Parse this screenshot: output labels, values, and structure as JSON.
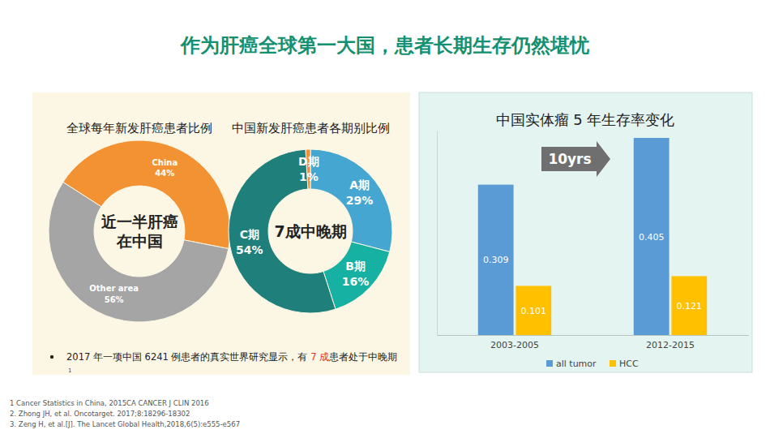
{
  "page": {
    "title": "作为肝癌全球第一大国，患者长期生存仍然堪忧",
    "bullet": [
      "2017 年一项中国 6241 例患者的真实世界研究显示，有 ",
      "7 成",
      "患者处于中晚期"
    ],
    "bullet_ref": "1",
    "footnotes": [
      "1 Cancer Statistics in China, 2015CA CANCER J CLIN 2016",
      "2. Zhong JH, et al. Oncotarget. 2017;8:18296-18302",
      "3. Zeng H, et al.[J]. The Lancet Global Health,2018,6(5):e555-e567"
    ]
  },
  "chart_data": [
    {
      "type": "pie",
      "title": "全球每年新发肝癌患者比例",
      "annotations": [
        "近一半肝癌",
        "在中国"
      ],
      "categories": [
        "China",
        "Other area"
      ],
      "values": [
        44,
        56
      ],
      "value_labels": [
        "44%",
        "56%"
      ],
      "colors": [
        "#f39232",
        "#a5a5a5"
      ],
      "data_labels": true
    },
    {
      "type": "pie",
      "title": "中国新发肝癌患者各期别比例",
      "annotations": [
        "7成中晚期"
      ],
      "categories": [
        "D期",
        "A期",
        "B期",
        "C期"
      ],
      "values": [
        1,
        29,
        16,
        54
      ],
      "value_labels": [
        "1%",
        "29%",
        "16%",
        "54%"
      ],
      "colors": [
        "#f0913a",
        "#45a7d1",
        "#16b1a2",
        "#1f7f7b"
      ],
      "data_labels": true
    },
    {
      "type": "bar",
      "title": "中国实体瘤 5 年生存率变化",
      "annotations": [
        "10yrs"
      ],
      "categories": [
        "2003-2005",
        "2012-2015"
      ],
      "series": [
        {
          "name": "all tumor",
          "color": "#5b9bd5",
          "values": [
            0.309,
            0.405
          ]
        },
        {
          "name": "HCC",
          "color": "#ffc000",
          "values": [
            0.101,
            0.121
          ]
        }
      ],
      "ylim": [
        0,
        0.42
      ],
      "yticks": [],
      "tick_labels": "x",
      "data_labels": true,
      "legend": "bottom"
    }
  ]
}
